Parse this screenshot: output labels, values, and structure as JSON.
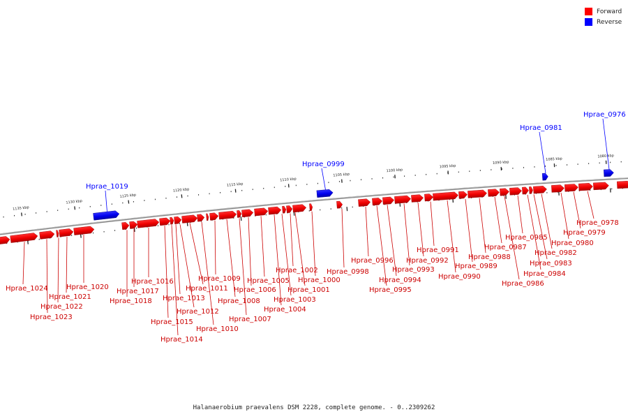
{
  "legend": {
    "forward": {
      "label": "Forward",
      "color": "#ff0000"
    },
    "reverse": {
      "label": "Reverse",
      "color": "#0000ff"
    }
  },
  "caption": "Halanaerobium praevalens DSM 2228, complete genome. - 0..2309262",
  "colors": {
    "backbone": "#888888",
    "tick": "#222222",
    "forward": "#ff0000",
    "reverse": "#0000ff"
  },
  "ticks": [
    "1135 kbp",
    "1130 kbp",
    "1125 kbp",
    "1120 kbp",
    "1115 kbp",
    "1110 kbp",
    "1105 kbp",
    "1100 kbp",
    "1095 kbp",
    "1090 kbp",
    "1085 kbp",
    "1080 kbp"
  ],
  "reverse_genes": [
    "Hprae_1019",
    "Hprae_0999",
    "Hprae_0981",
    "Hprae_0976"
  ],
  "forward_genes": [
    "Hprae_1024",
    "Hprae_1023",
    "Hprae_1022",
    "Hprae_1021",
    "Hprae_1020",
    "Hprae_1018",
    "Hprae_1017",
    "Hprae_1016",
    "Hprae_1015",
    "Hprae_1014",
    "Hprae_1013",
    "Hprae_1012",
    "Hprae_1011",
    "Hprae_1010",
    "Hprae_1009",
    "Hprae_1008",
    "Hprae_1007",
    "Hprae_1006",
    "Hprae_1005",
    "Hprae_1004",
    "Hprae_1003",
    "Hprae_1002",
    "Hprae_1001",
    "Hprae_1000",
    "Hprae_0998",
    "Hprae_0996",
    "Hprae_0995",
    "Hprae_0994",
    "Hprae_0993",
    "Hprae_0992",
    "Hprae_0991",
    "Hprae_0990",
    "Hprae_0989",
    "Hprae_0988",
    "Hprae_0987",
    "Hprae_0986",
    "Hprae_0985",
    "Hprae_0984",
    "Hprae_0983",
    "Hprae_0982",
    "Hprae_0980",
    "Hprae_0979",
    "Hprae_0978"
  ]
}
